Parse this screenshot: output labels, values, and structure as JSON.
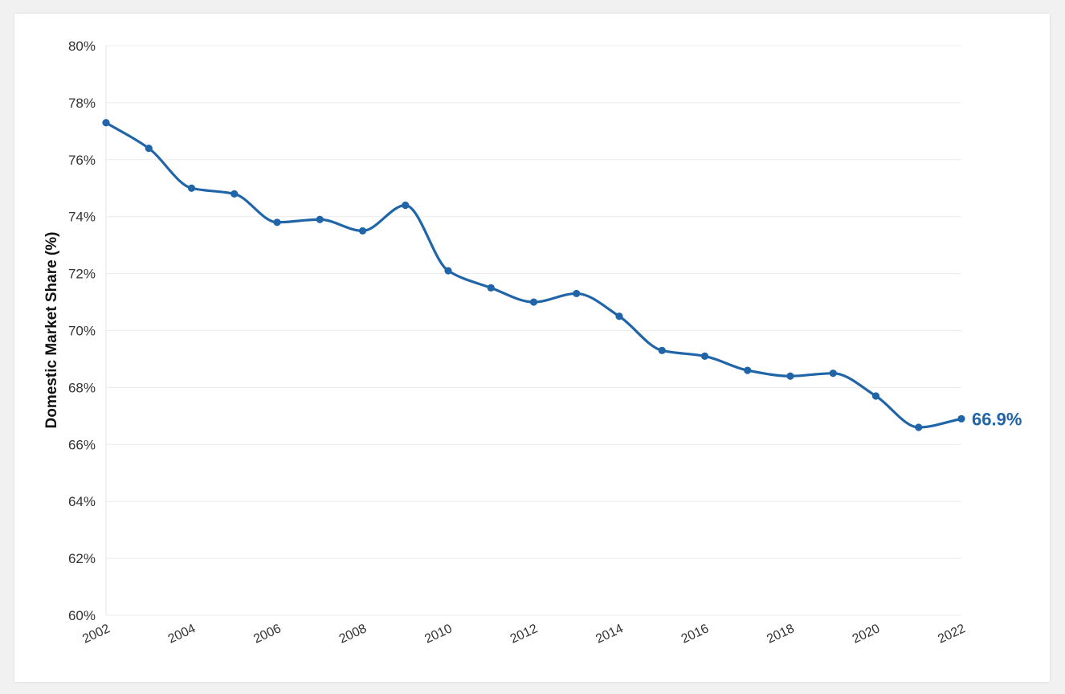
{
  "chart_data": {
    "type": "line",
    "title": "",
    "xlabel": "",
    "ylabel": "Domestic Market Share (%)",
    "x": [
      2002,
      2003,
      2004,
      2005,
      2006,
      2007,
      2008,
      2009,
      2010,
      2011,
      2012,
      2013,
      2014,
      2015,
      2016,
      2017,
      2018,
      2019,
      2020,
      2021,
      2022
    ],
    "x_tick_labels": [
      "2002",
      "2004",
      "2006",
      "2008",
      "2010",
      "2012",
      "2014",
      "2016",
      "2018",
      "2020",
      "2022"
    ],
    "y_tick_labels": [
      "80%",
      "78%",
      "76%",
      "74%",
      "72%",
      "70%",
      "68%",
      "66%",
      "64%",
      "62%",
      "60%"
    ],
    "ylim": [
      60,
      80
    ],
    "xlim": [
      2002,
      2022
    ],
    "grid": "horizontal",
    "series": [
      {
        "values": [
          77.3,
          76.4,
          75.0,
          74.8,
          73.8,
          73.9,
          73.5,
          74.4,
          72.1,
          71.5,
          71.0,
          71.3,
          70.5,
          69.3,
          69.1,
          68.6,
          68.4,
          68.5,
          67.7,
          66.6,
          66.9
        ],
        "color": "#1f65a8"
      }
    ],
    "annotations": [
      {
        "text": "66.9%",
        "x": 2022,
        "y": 66.9
      }
    ]
  }
}
